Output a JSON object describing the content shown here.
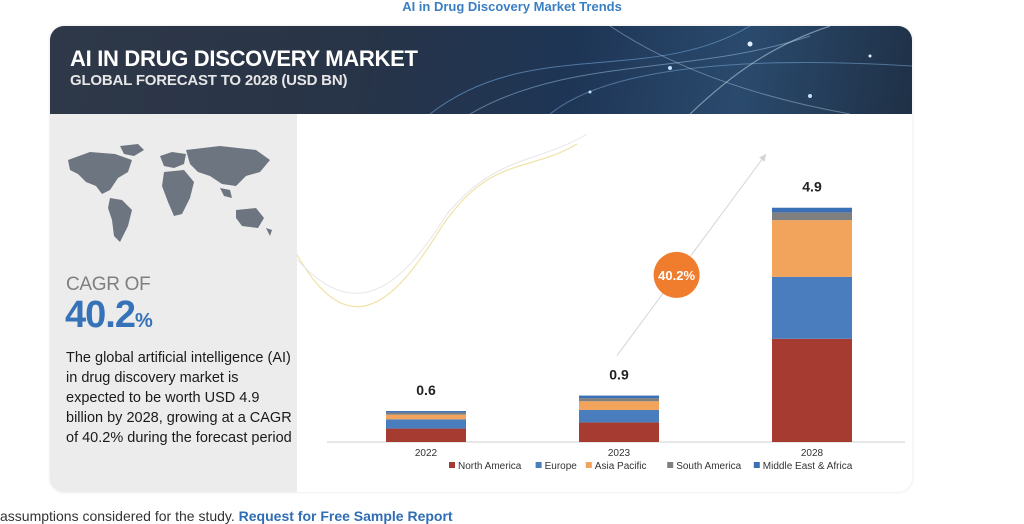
{
  "page_heading": "AI in Drug Discovery Market Trends",
  "banner": {
    "title": "AI IN DRUG DISCOVERY MARKET",
    "subtitle": "GLOBAL FORECAST TO 2028 (USD BN)"
  },
  "summary": {
    "cagr_label": "CAGR OF",
    "cagr_number": "40.2",
    "cagr_unit": "%",
    "description": "The global artificial intelligence (AI) in drug discovery market is expected to be worth USD  4.9 billion by 2028, growing at a CAGR of 40.2% during the forecast period"
  },
  "chart_data": {
    "type": "bar",
    "stacked": true,
    "categories": [
      "2022",
      "2023",
      "2028"
    ],
    "totals": [
      "0.6",
      "0.9",
      "4.9"
    ],
    "total_values": [
      0.6,
      0.9,
      4.9
    ],
    "series": [
      {
        "name": "North America",
        "color": "#a63b32",
        "values": [
          0.26,
          0.38,
          2.0
        ]
      },
      {
        "name": "Europe",
        "color": "#4a7dbd",
        "values": [
          0.18,
          0.24,
          1.2
        ]
      },
      {
        "name": "Asia Pacific",
        "color": "#f2a35c",
        "values": [
          0.09,
          0.17,
          1.1
        ]
      },
      {
        "name": "South America",
        "color": "#7f7f7f",
        "values": [
          0.04,
          0.06,
          0.15
        ]
      },
      {
        "name": "Middle East & Africa",
        "color": "#3b6fb6",
        "values": [
          0.03,
          0.05,
          0.09
        ]
      }
    ],
    "annotation": "40.2%",
    "annotation_color": "#ef7d2d",
    "ylim": [
      0,
      5.0
    ],
    "grid": false,
    "legend_position": "bottom"
  },
  "footer": {
    "text": " assumptions considered for the study. ",
    "link": "Request for Free Sample Report"
  }
}
